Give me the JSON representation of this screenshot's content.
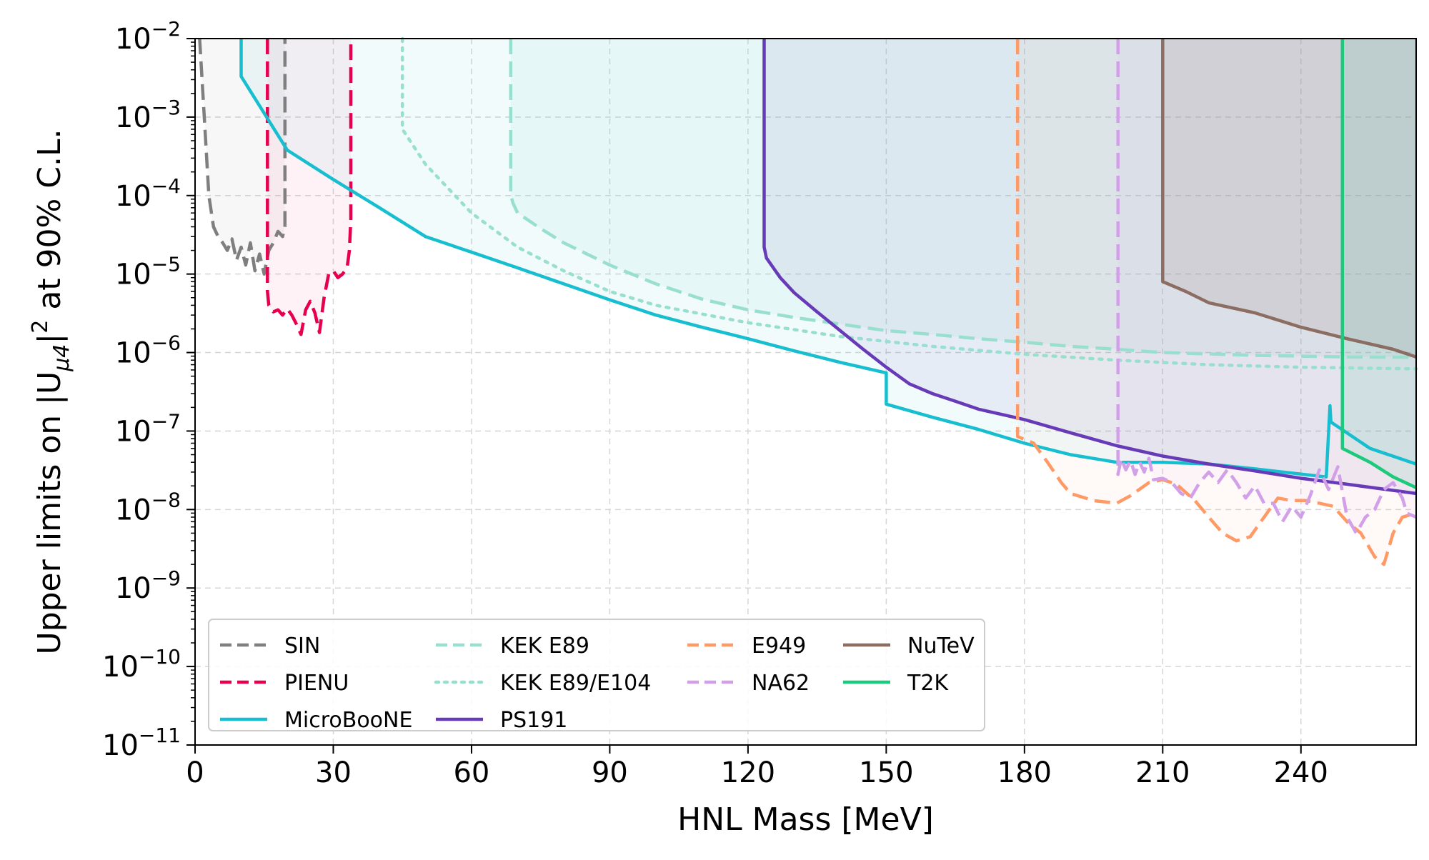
{
  "chart_data": {
    "type": "line",
    "xlabel": "HNL Mass [MeV]",
    "ylabel_parts": [
      "Upper limits on |U",
      "μ4",
      "|",
      "2",
      " at 90% C.L."
    ],
    "xlim": [
      0,
      265
    ],
    "ylim": [
      1e-11,
      0.01
    ],
    "yscale": "log",
    "grid": true,
    "legend_position": "lower-left",
    "x_ticks": [
      0,
      30,
      60,
      90,
      120,
      150,
      180,
      210,
      240
    ],
    "y_ticks": [
      {
        "value": 0.01,
        "base": "10",
        "exp": "−2"
      },
      {
        "value": 0.001,
        "base": "10",
        "exp": "−3"
      },
      {
        "value": 0.0001,
        "base": "10",
        "exp": "−4"
      },
      {
        "value": 1e-05,
        "base": "10",
        "exp": "−5"
      },
      {
        "value": 1e-06,
        "base": "10",
        "exp": "−6"
      },
      {
        "value": 1e-07,
        "base": "10",
        "exp": "−7"
      },
      {
        "value": 1e-08,
        "base": "10",
        "exp": "−8"
      },
      {
        "value": 1e-09,
        "base": "10",
        "exp": "−9"
      },
      {
        "value": 1e-10,
        "base": "10",
        "exp": "−10"
      },
      {
        "value": 1e-11,
        "base": "10",
        "exp": "−11"
      }
    ],
    "series": [
      {
        "name": "SIN",
        "color": "#7f7f7f",
        "dash": "dashed",
        "fill_opacity": 0.06,
        "x": [
          1,
          2,
          3,
          4,
          5,
          6,
          7,
          8,
          9,
          10,
          11,
          12,
          13,
          14,
          15,
          16,
          17,
          18,
          19,
          19.5,
          19.5
        ],
        "y": [
          0.01,
          0.001,
          0.0001,
          4e-05,
          3e-05,
          2.5e-05,
          2e-05,
          2.8e-05,
          1.5e-05,
          2.2e-05,
          1.3e-05,
          2.5e-05,
          1.1e-05,
          1.8e-05,
          1e-05,
          2e-05,
          2.5e-05,
          3.5e-05,
          3e-05,
          4e-05,
          0.01
        ]
      },
      {
        "name": "PIENU",
        "color": "#e6004d",
        "dash": "dashed",
        "fill_opacity": 0.05,
        "x": [
          15.7,
          15.7,
          16,
          17,
          18,
          19,
          20,
          21,
          22,
          23,
          24,
          25,
          26,
          27,
          28,
          29,
          30,
          31,
          32,
          33,
          33.5,
          33.8,
          33.8
        ],
        "y": [
          0.01,
          6e-06,
          4e-06,
          3.3e-06,
          3.5e-06,
          3e-06,
          3.6e-06,
          3e-06,
          2.3e-06,
          1.7e-06,
          3.5e-06,
          4.5e-06,
          3.2e-06,
          1.8e-06,
          5e-06,
          1e-05,
          1.1e-05,
          9e-06,
          1e-05,
          1.2e-05,
          2e-05,
          5e-05,
          0.01
        ]
      },
      {
        "name": "MicroBooNE",
        "color": "#17becf",
        "dash": "solid",
        "fill_opacity": 0.06,
        "x": [
          10,
          10,
          20,
          30,
          40,
          50,
          60,
          70,
          80,
          90,
          100,
          110,
          120,
          130,
          140,
          150,
          150,
          160,
          170,
          180,
          190,
          200,
          210,
          220,
          230,
          245.5,
          246.3,
          246.5,
          255,
          265
        ],
        "y": [
          0.01,
          0.0033,
          0.00038,
          0.00016,
          7e-05,
          3e-05,
          1.9e-05,
          1.2e-05,
          7.5e-06,
          4.7e-06,
          3e-06,
          2.1e-06,
          1.5e-06,
          1.05e-06,
          7.5e-07,
          5.5e-07,
          2.2e-07,
          1.5e-07,
          1.05e-07,
          7e-08,
          5e-08,
          4e-08,
          4e-08,
          3.8e-08,
          3.3e-08,
          2.6e-08,
          2.1e-07,
          1.3e-07,
          6e-08,
          3.8e-08
        ]
      },
      {
        "name": "KEK E89",
        "color": "#98dfd0",
        "dash": "dashed",
        "fill_opacity": 0.12,
        "x": [
          68.5,
          68.5,
          69,
          70,
          75,
          80,
          90,
          100,
          110,
          120,
          130,
          140,
          150,
          160,
          170,
          180,
          190,
          200,
          210,
          220,
          230,
          240,
          250,
          265
        ],
        "y": [
          0.01,
          0.0001,
          8e-05,
          6e-05,
          3.8e-05,
          2.5e-05,
          1.3e-05,
          7.5e-06,
          4.8e-06,
          3.5e-06,
          2.8e-06,
          2.3e-06,
          1.9e-06,
          1.7e-06,
          1.5e-06,
          1.35e-06,
          1.2e-06,
          1.1e-06,
          1e-06,
          9.6e-07,
          9.2e-07,
          9e-07,
          8.8e-07,
          8.7e-07
        ]
      },
      {
        "name": "KEK E89/E104",
        "color": "#98dfd0",
        "dash": "dotted",
        "fill_opacity": 0.0,
        "x": [
          45,
          45,
          50,
          60,
          70,
          80,
          90,
          100,
          120,
          140,
          160,
          180,
          200,
          220,
          240,
          265
        ],
        "y": [
          0.01,
          0.0007,
          0.00025,
          6e-05,
          2.2e-05,
          1.1e-05,
          6e-06,
          4e-06,
          2.4e-06,
          1.6e-06,
          1.2e-06,
          9.5e-07,
          8e-07,
          7e-07,
          6.5e-07,
          6.2e-07
        ]
      },
      {
        "name": "PS191",
        "color": "#673ab7",
        "dash": "solid",
        "fill_opacity": 0.08,
        "x": [
          123.5,
          123.5,
          124,
          127,
          130,
          135,
          140,
          145,
          150,
          155,
          160,
          165,
          170,
          180,
          190,
          200,
          210,
          220,
          230,
          240,
          250,
          265
        ],
        "y": [
          0.01,
          2.2e-05,
          1.6e-05,
          9e-06,
          5.8e-06,
          3.3e-06,
          1.9e-06,
          1.1e-06,
          6.5e-07,
          4e-07,
          3e-07,
          2.4e-07,
          1.9e-07,
          1.4e-07,
          9.5e-08,
          6.5e-08,
          4.8e-08,
          3.8e-08,
          3.1e-08,
          2.5e-08,
          2.1e-08,
          1.6e-08
        ]
      },
      {
        "name": "E949",
        "color": "#ff9966",
        "dash": "dashed",
        "fill_opacity": 0.05,
        "x": [
          178.5,
          178.5,
          182,
          185,
          188,
          190,
          195,
          200,
          203,
          207,
          210,
          213,
          217,
          220,
          223,
          226,
          229,
          232,
          235,
          238,
          241,
          244,
          247,
          250,
          253,
          256,
          258,
          260,
          262,
          265
        ],
        "y": [
          0.01,
          8.5e-08,
          7e-08,
          4e-08,
          2.2e-08,
          1.6e-08,
          1.3e-08,
          1.2e-08,
          1.5e-08,
          2.2e-08,
          2.4e-08,
          2.1e-08,
          1.3e-08,
          8e-09,
          5e-09,
          4e-09,
          4.5e-09,
          8e-09,
          1.4e-08,
          1.3e-08,
          1.3e-08,
          1.2e-08,
          1.1e-08,
          7e-09,
          5e-09,
          2.5e-09,
          2e-09,
          5e-09,
          8e-09,
          9e-09
        ]
      },
      {
        "name": "NA62",
        "color": "#d2a0e8",
        "dash": "dashed",
        "fill_opacity": 0.06,
        "x": [
          200.3,
          200.3,
          201,
          202,
          203,
          204,
          205,
          206,
          207,
          208,
          210,
          212,
          214,
          216,
          218,
          220,
          222,
          224,
          226,
          228,
          230,
          232,
          234,
          236,
          238,
          240,
          242,
          244,
          246,
          248,
          250,
          252,
          254,
          256,
          258,
          260,
          262,
          263,
          265
        ],
        "y": [
          0.01,
          2.8e-08,
          4.5e-08,
          3.2e-08,
          4.2e-08,
          2.8e-08,
          4e-08,
          3e-08,
          4.5e-08,
          2.4e-08,
          2.5e-08,
          2.2e-08,
          1.6e-08,
          1.4e-08,
          2.2e-08,
          3e-08,
          2.2e-08,
          3.2e-08,
          2.2e-08,
          1.4e-08,
          2e-08,
          1.2e-08,
          1.2e-08,
          7e-09,
          1.1e-08,
          8e-09,
          1.5e-08,
          3.2e-08,
          1.8e-08,
          3.5e-08,
          8e-09,
          5e-09,
          8e-09,
          1e-08,
          1.8e-08,
          2.2e-08,
          1.4e-08,
          9e-09,
          8e-09
        ]
      },
      {
        "name": "NuTeV",
        "color": "#8c6d62",
        "dash": "solid",
        "fill_opacity": 0.12,
        "x": [
          210,
          210,
          215,
          220,
          230,
          240,
          250,
          260,
          265
        ],
        "y": [
          0.01,
          8e-06,
          6e-06,
          4.3e-06,
          3.2e-06,
          2.1e-06,
          1.5e-06,
          1.1e-06,
          8.8e-07
        ]
      },
      {
        "name": "T2K",
        "color": "#1dc97c",
        "dash": "solid",
        "fill_opacity": 0.1,
        "x": [
          249,
          249,
          255,
          260,
          265
        ],
        "y": [
          0.01,
          6e-08,
          4e-08,
          2.6e-08,
          1.9e-08
        ]
      }
    ],
    "legend_columns": [
      [
        "SIN",
        "PIENU",
        "MicroBooNE"
      ],
      [
        "KEK E89",
        "KEK E89/E104",
        "PS191"
      ],
      [
        "E949",
        "NA62"
      ],
      [
        "NuTeV",
        "T2K"
      ]
    ]
  }
}
